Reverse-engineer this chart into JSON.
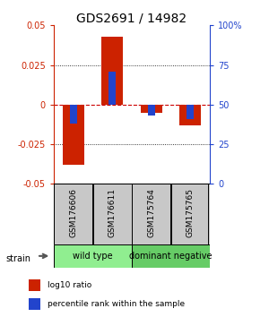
{
  "title": "GDS2691 / 14982",
  "samples": [
    "GSM176606",
    "GSM176611",
    "GSM175764",
    "GSM175765"
  ],
  "log10_ratio": [
    -0.038,
    0.043,
    -0.005,
    -0.013
  ],
  "percentile_rank_axis": [
    -0.012,
    0.021,
    -0.007,
    -0.009
  ],
  "ylim": [
    -0.05,
    0.05
  ],
  "yticks_left": [
    -0.05,
    -0.025,
    0,
    0.025,
    0.05
  ],
  "ytick_labels_left": [
    "-0.05",
    "-0.025",
    "0",
    "0.025",
    "0.05"
  ],
  "yticks_right_vals": [
    0,
    25,
    50,
    75,
    100
  ],
  "ytick_labels_right": [
    "0",
    "25",
    "50",
    "75",
    "100%"
  ],
  "groups": [
    {
      "label": "wild type",
      "samples": [
        0,
        1
      ],
      "color": "#90EE90"
    },
    {
      "label": "dominant negative",
      "samples": [
        2,
        3
      ],
      "color": "#66CC66"
    }
  ],
  "strain_label": "strain",
  "red_color": "#CC2200",
  "blue_color": "#2244CC",
  "zero_line_color": "#CC0000",
  "bg_color": "#FFFFFF",
  "sample_box_color": "#C8C8C8",
  "legend_red_label": "log10 ratio",
  "legend_blue_label": "percentile rank within the sample",
  "title_fontsize": 10,
  "tick_fontsize": 7,
  "sample_fontsize": 6.5
}
